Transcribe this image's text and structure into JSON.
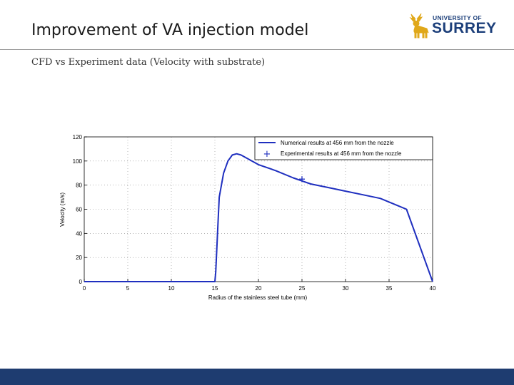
{
  "slide": {
    "title": "Improvement of VA injection model",
    "subtitle": "CFD vs Experiment data (Velocity with substrate)"
  },
  "logo": {
    "line1": "UNIVERSITY OF",
    "line2": "SURREY",
    "emblem_icon": "stag-icon",
    "color": "#1c3f7a",
    "emblem_color": "#e0a81a"
  },
  "footer": {
    "color": "#1e3c70"
  },
  "chart_data": {
    "type": "line",
    "xlabel": "Radius of the stainless steel tube (mm)",
    "ylabel": "Velocity (m/s)",
    "xlim": [
      0,
      40
    ],
    "ylim": [
      0,
      120
    ],
    "xticks": [
      0,
      5,
      10,
      15,
      20,
      25,
      30,
      35,
      40
    ],
    "yticks": [
      0,
      20,
      40,
      60,
      80,
      100,
      120
    ],
    "grid": true,
    "legend_position": "top-right",
    "series": [
      {
        "name": "Numerical results at 456 mm from the nozzle",
        "style": "line",
        "color": "#1f2fbf",
        "x": [
          0,
          15,
          15.1,
          15.3,
          15.5,
          16,
          16.5,
          17,
          17.5,
          18,
          19,
          20,
          22,
          24,
          26,
          28,
          30,
          32,
          34,
          36,
          37,
          40
        ],
        "y": [
          0,
          0,
          8,
          40,
          70,
          90,
          100,
          105,
          106,
          105,
          101,
          97,
          92,
          86,
          81,
          78,
          75,
          72,
          69,
          63,
          60,
          0
        ]
      },
      {
        "name": "Experimental results at 456 mm from the nozzle",
        "style": "marker",
        "marker": "+",
        "color": "#1f2fbf",
        "x": [
          25
        ],
        "y": [
          85
        ]
      }
    ]
  }
}
